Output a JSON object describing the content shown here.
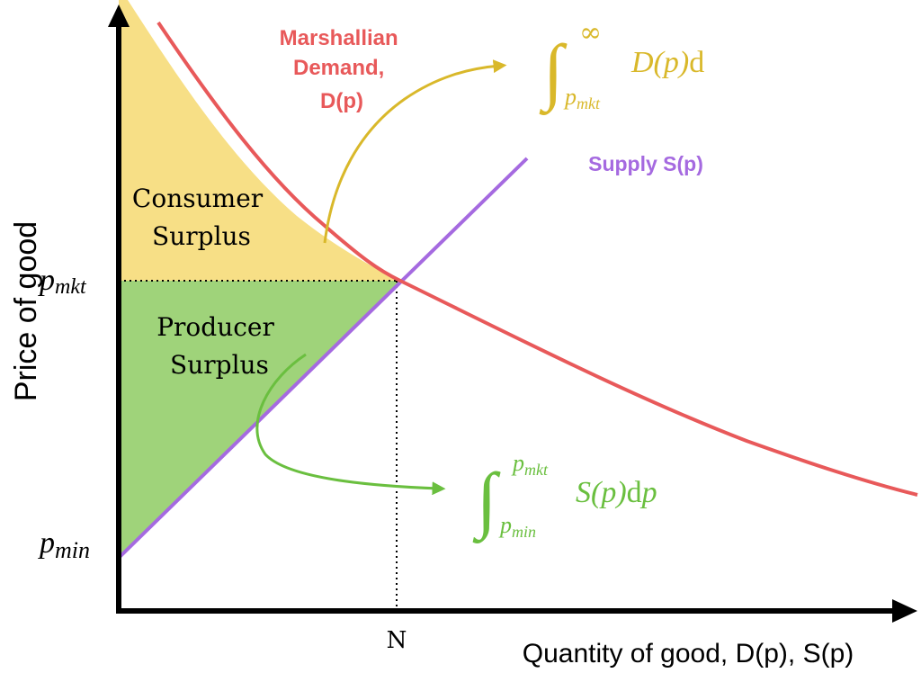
{
  "colors": {
    "demand": "#e8595a",
    "supply": "#a56ae0",
    "consumer_fill": "#f7df86",
    "producer_fill": "#9fd37a",
    "consumer_formula": "#d9b82a",
    "producer_formula": "#6abf3f",
    "axis": "#000000"
  },
  "axes": {
    "y_label": "Price of good",
    "x_label": "Quantity of good, D(p), S(p)"
  },
  "ticks": {
    "p_mkt_base": "p",
    "p_mkt_sub": "mkt",
    "p_min_base": "p",
    "p_min_sub": "min",
    "n_label": "N"
  },
  "demand_label": {
    "line1": "Marshallian",
    "line2": "Demand,",
    "line3": "D(p)"
  },
  "supply_label": "Supply S(p)",
  "areas": {
    "consumer_line1": "Consumer",
    "consumer_line2": "Surplus",
    "producer_line1": "Producer",
    "producer_line2": "Surplus"
  },
  "formulas": {
    "consumer": {
      "integral": "∫",
      "upper": "∞",
      "lower_base": "p",
      "lower_sub": "mkt",
      "body_fn": "D(p)",
      "body_rest": "d"
    },
    "producer": {
      "integral": "∫",
      "upper_base": "p",
      "upper_sub": "mkt",
      "lower_base": "p",
      "lower_sub": "min",
      "body_fn": "S(p)",
      "body_d": "d",
      "body_var": "p"
    }
  }
}
